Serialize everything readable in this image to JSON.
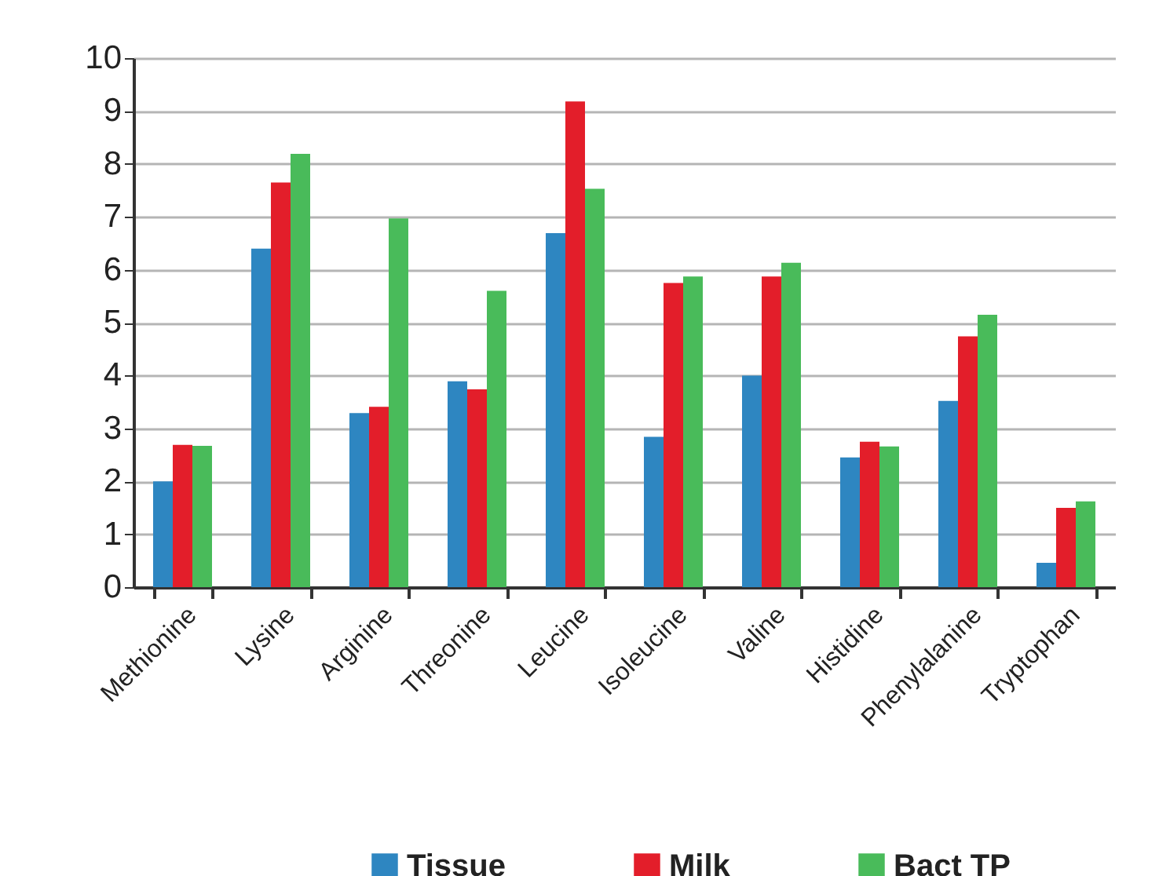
{
  "chart_data": {
    "type": "bar",
    "categories": [
      "Methionine",
      "Lysine",
      "Arginine",
      "Threonine",
      "Leucine",
      "Isoleucine",
      "Valine",
      "Histidine",
      "Phenylalanine",
      "Tryptophan"
    ],
    "series": [
      {
        "name": "Tissue",
        "color": "#2e86c1",
        "values": [
          2.0,
          6.4,
          3.29,
          3.89,
          6.69,
          2.84,
          4.0,
          2.45,
          3.52,
          0.46
        ]
      },
      {
        "name": "Milk",
        "color": "#e31e2a",
        "values": [
          2.69,
          7.65,
          3.41,
          3.74,
          9.18,
          5.75,
          5.87,
          2.75,
          4.74,
          1.5
        ]
      },
      {
        "name": "Bact TP",
        "color": "#49bb5a",
        "values": [
          2.67,
          8.19,
          6.97,
          5.6,
          7.53,
          5.87,
          6.13,
          2.66,
          5.15,
          1.62
        ]
      }
    ],
    "ylim": [
      0,
      10
    ],
    "yticks": [
      0,
      1,
      2,
      3,
      4,
      5,
      6,
      7,
      8,
      9,
      10
    ],
    "grid": "y",
    "legend": "bottom"
  }
}
